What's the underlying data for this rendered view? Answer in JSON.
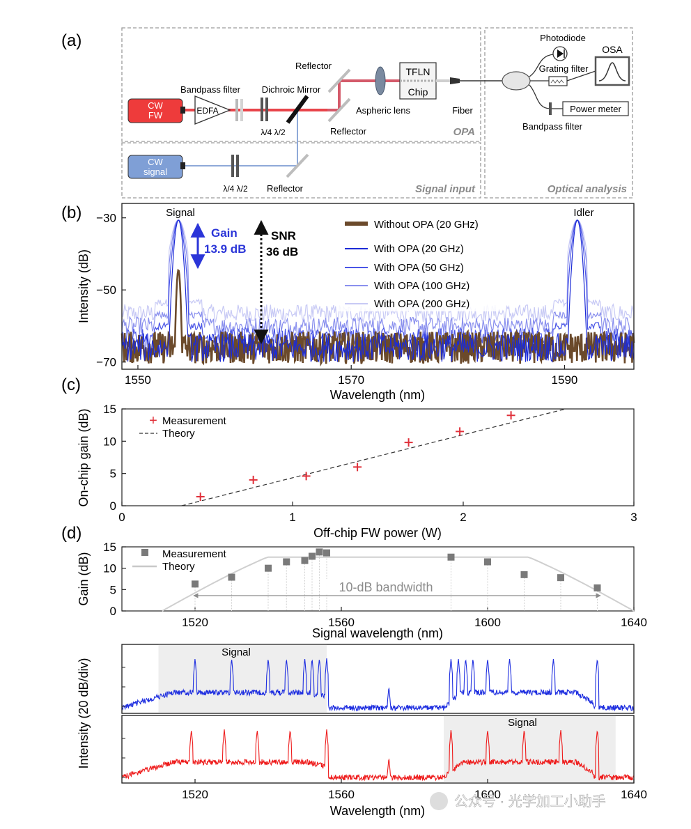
{
  "panel_labels": {
    "a": "(a)",
    "b": "(b)",
    "c": "(c)",
    "d": "(d)"
  },
  "setup": {
    "cw_fw": [
      "CW",
      "FW"
    ],
    "cw_signal": [
      "CW",
      "signal"
    ],
    "edfa": "EDFA",
    "bandpass_filter": "Bandpass filter",
    "dichroic_mirror": "Dichroic Mirror",
    "waveplates": "λ/4 λ/2",
    "reflector": "Reflector",
    "aspheric_lens": "Aspheric lens",
    "tfln": "TFLN",
    "chip": "Chip",
    "fiber": "Fiber",
    "photodiode": "Photodiode",
    "osa": "OSA",
    "grating_filter": "Grating filter",
    "power_meter": "Power meter",
    "bandpass_filter_2": "Bandpass filter",
    "section_opa": "OPA",
    "section_signal_input": "Signal input",
    "section_optical_analysis": "Optical analysis",
    "colors": {
      "fw": "#e8444a",
      "signal": "#8fa9d8",
      "fw_box": "#ee3b3b",
      "signal_box": "#7f9fd6"
    }
  },
  "watermark": "公众号 · 光学加工小助手",
  "chart_data": [
    {
      "id": "b",
      "type": "line",
      "title": "",
      "xlabel": "Wavelength (nm)",
      "ylabel": "Intensity (dB)",
      "xlim": [
        1548.5,
        1596.5
      ],
      "ylim": [
        -72,
        -26
      ],
      "xticks": [
        1550,
        1570,
        1590
      ],
      "yticks": [
        -30,
        -50,
        -70
      ],
      "ytick_labels": [
        "−30",
        "−50",
        "−70"
      ],
      "labels": {
        "signal": "Signal",
        "idler": "Idler",
        "gain": "Gain",
        "gain_value": "13.9 dB",
        "snr": "SNR",
        "snr_value": "36 dB"
      },
      "peaks": {
        "signal_nm": 1553.8,
        "idler_nm": 1591.2
      },
      "series": [
        {
          "name": "Without OPA (20 GHz)",
          "color": "#6b4a2b",
          "floor_db": -66,
          "signal_peak_db": -44.5,
          "idler_peak_db": null
        },
        {
          "name": "With OPA (20 GHz)",
          "color": "#1c2bd6",
          "floor_db": -66,
          "signal_peak_db": -30.6,
          "idler_peak_db": -30.6
        },
        {
          "name": "With OPA (50 GHz)",
          "color": "#4a55e6",
          "floor_db": -63,
          "signal_peak_db": -30.6,
          "idler_peak_db": -30.6
        },
        {
          "name": "With OPA (100 GHz)",
          "color": "#8a90ee",
          "floor_db": -60,
          "signal_peak_db": -30.6,
          "idler_peak_db": -30.6
        },
        {
          "name": "With OPA (200 GHz)",
          "color": "#c8caf5",
          "floor_db": -56.5,
          "signal_peak_db": -30.6,
          "idler_peak_db": -30.6
        }
      ]
    },
    {
      "id": "c",
      "type": "scatter",
      "xlabel": "Off-chip FW power (W)",
      "ylabel": "On-chip gain (dB)",
      "xlim": [
        0,
        3
      ],
      "ylim": [
        0,
        15
      ],
      "xticks": [
        0,
        1,
        2,
        3
      ],
      "yticks": [
        0,
        5,
        10,
        15
      ],
      "legend": [
        "Measurement",
        "Theory"
      ],
      "measurement": {
        "x": [
          0.46,
          0.77,
          1.08,
          1.38,
          1.68,
          1.98,
          2.28
        ],
        "y": [
          1.4,
          4.0,
          4.6,
          6.0,
          9.8,
          11.5,
          14.0
        ]
      },
      "theory": {
        "x": [
          0.35,
          2.6
        ],
        "y": [
          0.0,
          15.0
        ]
      }
    },
    {
      "id": "d",
      "type": "scatter",
      "xlabel": "Signal wavelength (nm)",
      "ylabel": "Gain (dB)",
      "xlim": [
        1500,
        1640
      ],
      "ylim": [
        0,
        15
      ],
      "xticks": [
        1520,
        1560,
        1600,
        1640
      ],
      "yticks": [
        0,
        5,
        10,
        15
      ],
      "legend": [
        "Measurement",
        "Theory"
      ],
      "annotation": "10-dB bandwidth",
      "bandwidth_nm": [
        1520,
        1630
      ],
      "measurement": {
        "x": [
          1520,
          1530,
          1540,
          1545,
          1550,
          1552,
          1554,
          1556,
          1590,
          1600,
          1610,
          1620,
          1630
        ],
        "y": [
          6.3,
          7.9,
          10.0,
          11.5,
          11.8,
          12.8,
          13.8,
          13.6,
          12.6,
          11.5,
          8.5,
          7.8,
          5.4
        ]
      },
      "theory": {
        "plateau_db": 12.6,
        "edge_start_nm": 1511,
        "edge_end_nm": 1640
      }
    },
    {
      "id": "d_spectra",
      "type": "line",
      "xlabel": "Wavelength (nm)",
      "ylabel": "Intensity (20 dB/div)",
      "xlim": [
        1500,
        1640
      ],
      "xticks": [
        1520,
        1560,
        1600,
        1640
      ],
      "series": [
        {
          "name": "blue spectrum",
          "color": "#1f2fe0",
          "signal_label": "Signal",
          "signal_region_nm": [
            1510,
            1556
          ],
          "peaks_nm": [
            1520,
            1530,
            1540,
            1545,
            1550,
            1552,
            1554,
            1556,
            1573,
            1590,
            1592,
            1594,
            1596,
            1600,
            1606,
            1618,
            1630
          ]
        },
        {
          "name": "red spectrum",
          "color": "#ee1c1c",
          "signal_label": "Signal",
          "signal_region_nm": [
            1588,
            1635
          ],
          "peaks_nm": [
            1519,
            1528,
            1537,
            1546,
            1556,
            1573,
            1590,
            1600,
            1610,
            1620,
            1630
          ]
        }
      ]
    }
  ]
}
